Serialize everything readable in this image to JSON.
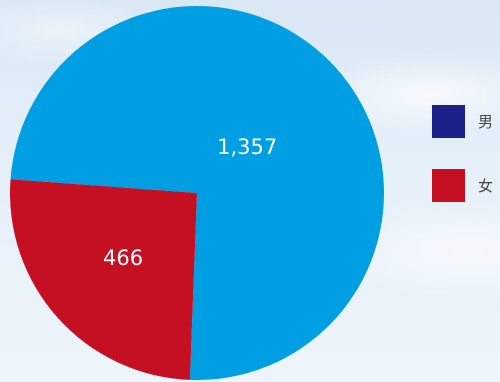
{
  "chart_data": {
    "type": "pie",
    "categories": [
      "男",
      "女"
    ],
    "values": [
      1357,
      466
    ],
    "value_labels": [
      "1,357",
      "466"
    ],
    "colors": [
      "#009fe3",
      "#c50f23"
    ],
    "legend": {
      "placement": "right",
      "entries": [
        {
          "label": "男",
          "color": "#1d2088"
        },
        {
          "label": "女",
          "color": "#c50f23"
        }
      ]
    }
  }
}
